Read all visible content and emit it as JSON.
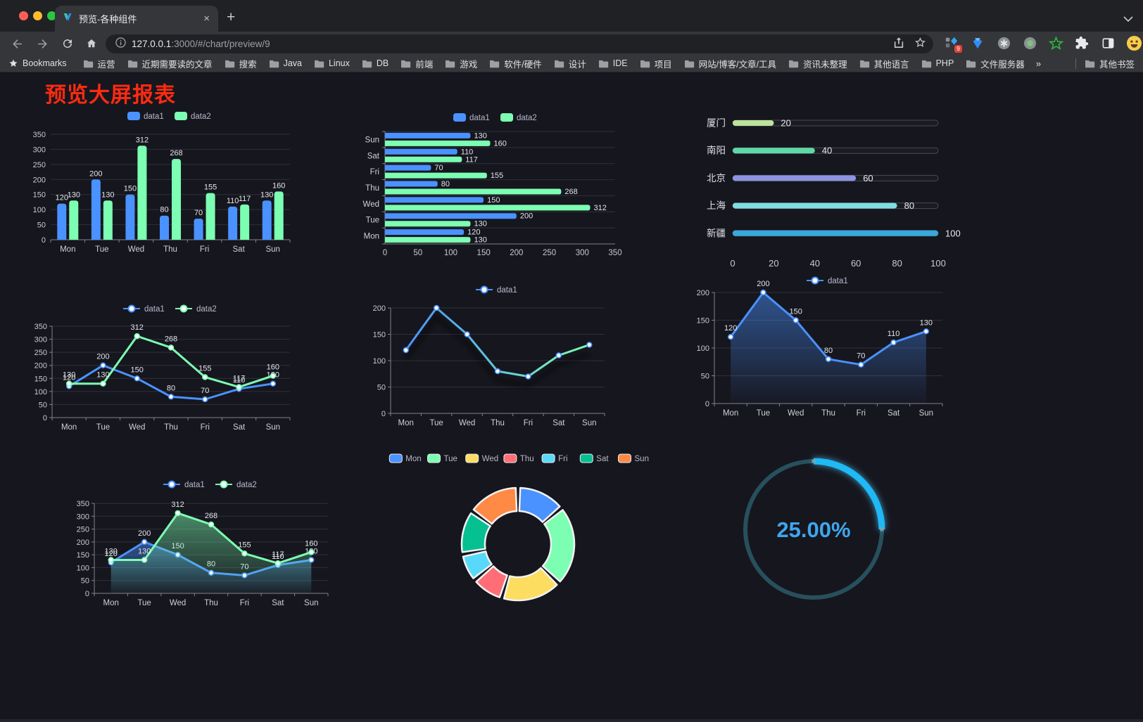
{
  "browser": {
    "tab": {
      "title": "预览-各种组件",
      "close": "×",
      "new_tab": "+"
    },
    "url": {
      "host": "127.0.0.1",
      "rest": ":3000/#/chart/preview/9"
    },
    "extension_badge": "9",
    "bookmarks_bar": {
      "star_label": "Bookmarks",
      "folders": [
        "运营",
        "近期需要读的文章",
        "搜索",
        "Java",
        "Linux",
        "DB",
        "前端",
        "游戏",
        "软件/硬件",
        "设计",
        "IDE",
        "项目",
        "网站/博客/文章/工具",
        "资讯未整理",
        "其他语言",
        "PHP",
        "文件服务器"
      ],
      "overflow": "»",
      "other": "其他书签"
    }
  },
  "page": {
    "title": "预览大屏报表",
    "title_color": "#fb2b10",
    "background": "#16161e"
  },
  "palette": {
    "blue": "#4992ff",
    "green": "#7cffb2",
    "yellow": "#fddd60",
    "red": "#ff6e76",
    "cyan": "#58d9f9",
    "teal": "#05c091",
    "orange": "#ff8a45"
  },
  "chart_data": [
    {
      "id": "bar-vertical",
      "type": "bar",
      "categories": [
        "Mon",
        "Tue",
        "Wed",
        "Thu",
        "Fri",
        "Sat",
        "Sun"
      ],
      "series": [
        {
          "name": "data1",
          "color": "#4992ff",
          "values": [
            120,
            200,
            150,
            80,
            70,
            110,
            130
          ]
        },
        {
          "name": "data2",
          "color": "#7cffb2",
          "values": [
            130,
            130,
            312,
            268,
            155,
            117,
            160
          ]
        }
      ],
      "ylim": [
        0,
        350
      ],
      "ytick_step": 50,
      "legend_position": "top",
      "grid": true
    },
    {
      "id": "bar-horizontal",
      "type": "bar-horizontal",
      "categories": [
        "Mon",
        "Tue",
        "Wed",
        "Thu",
        "Fri",
        "Sat",
        "Sun"
      ],
      "series": [
        {
          "name": "data1",
          "color": "#4992ff",
          "values": [
            120,
            200,
            150,
            80,
            70,
            110,
            130
          ]
        },
        {
          "name": "data2",
          "color": "#7cffb2",
          "values": [
            130,
            130,
            312,
            268,
            155,
            117,
            160
          ]
        }
      ],
      "xlim": [
        0,
        350
      ],
      "xtick_step": 50,
      "legend_position": "top"
    },
    {
      "id": "progress-list",
      "type": "progress-bars",
      "xlim": [
        0,
        100
      ],
      "xticks": [
        0,
        20,
        40,
        60,
        80,
        100
      ],
      "rows": [
        {
          "label": "厦门",
          "value": 20,
          "color": "#bde39b"
        },
        {
          "label": "南阳",
          "value": 40,
          "color": "#5ed9a6"
        },
        {
          "label": "北京",
          "value": 60,
          "color": "#8d93e1"
        },
        {
          "label": "上海",
          "value": 80,
          "color": "#80dde2"
        },
        {
          "label": "新疆",
          "value": 100,
          "color": "#38a9dd"
        }
      ]
    },
    {
      "id": "line-two",
      "type": "line",
      "categories": [
        "Mon",
        "Tue",
        "Wed",
        "Thu",
        "Fri",
        "Sat",
        "Sun"
      ],
      "series": [
        {
          "name": "data1",
          "color": "#4992ff",
          "values": [
            120,
            200,
            150,
            80,
            70,
            110,
            130
          ]
        },
        {
          "name": "data2",
          "color": "#7cffb2",
          "values": [
            130,
            130,
            312,
            268,
            155,
            117,
            160
          ]
        }
      ],
      "ylim": [
        0,
        350
      ],
      "ytick_step": 50,
      "show_labels": true
    },
    {
      "id": "line-gradient",
      "type": "line-gradient",
      "categories": [
        "Mon",
        "Tue",
        "Wed",
        "Thu",
        "Fri",
        "Sat",
        "Sun"
      ],
      "series": [
        {
          "name": "data1",
          "gradient": [
            "#4992ff",
            "#7cffb2"
          ],
          "values": [
            120,
            200,
            150,
            80,
            70,
            110,
            130
          ]
        }
      ],
      "ylim": [
        0,
        200
      ],
      "ytick_step": 50,
      "show_labels": false
    },
    {
      "id": "area-single",
      "type": "area",
      "categories": [
        "Mon",
        "Tue",
        "Wed",
        "Thu",
        "Fri",
        "Sat",
        "Sun"
      ],
      "series": [
        {
          "name": "data1",
          "color": "#4992ff",
          "values": [
            120,
            200,
            150,
            80,
            70,
            110,
            130
          ]
        }
      ],
      "ylim": [
        0,
        200
      ],
      "ytick_step": 50,
      "show_labels": true
    },
    {
      "id": "line-area-two",
      "type": "line-area",
      "categories": [
        "Mon",
        "Tue",
        "Wed",
        "Thu",
        "Fri",
        "Sat",
        "Sun"
      ],
      "series": [
        {
          "name": "data1",
          "color": "#4992ff",
          "values": [
            120,
            200,
            150,
            80,
            70,
            110,
            130
          ]
        },
        {
          "name": "data2",
          "color": "#7cffb2",
          "values": [
            130,
            130,
            312,
            268,
            155,
            117,
            160
          ]
        }
      ],
      "ylim": [
        0,
        350
      ],
      "ytick_step": 50,
      "show_labels": true
    },
    {
      "id": "donut",
      "type": "pie",
      "categories": [
        "Mon",
        "Tue",
        "Wed",
        "Thu",
        "Fri",
        "Sat",
        "Sun"
      ],
      "values": [
        120,
        200,
        150,
        80,
        70,
        110,
        130
      ],
      "colors": [
        "#4992ff",
        "#7cffb2",
        "#fddd60",
        "#ff6e76",
        "#58d9f9",
        "#05c091",
        "#ff8a45"
      ],
      "legend_position": "top"
    },
    {
      "id": "gauge",
      "type": "gauge",
      "percent": 25,
      "label": "25.00%",
      "arc_color": "#1fb9f5",
      "track_color": "#27505d",
      "text_color": "#3fa6ee"
    }
  ]
}
